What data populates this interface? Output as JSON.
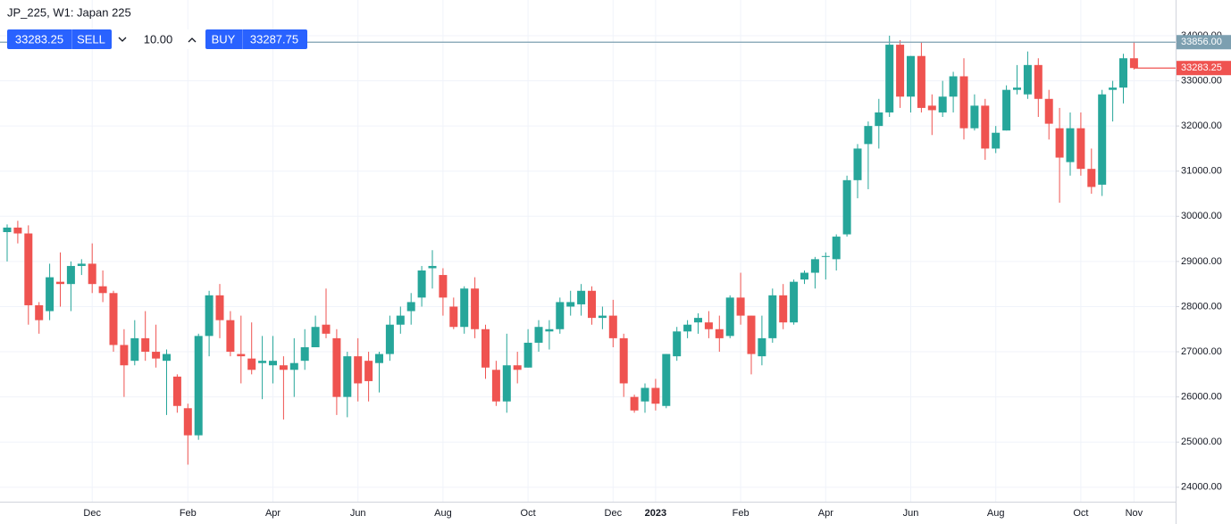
{
  "chart_data": {
    "type": "candlestick",
    "title": "JP_225, W1: Japan 225",
    "categories": [
      null,
      null,
      null,
      null,
      null,
      null,
      null,
      null,
      "Dec",
      null,
      null,
      null,
      null,
      null,
      null,
      null,
      null,
      "Feb",
      null,
      null,
      null,
      null,
      null,
      null,
      null,
      "Apr",
      null,
      null,
      null,
      null,
      null,
      null,
      null,
      "Jun",
      null,
      null,
      null,
      null,
      null,
      null,
      null,
      "Aug",
      null,
      null,
      null,
      null,
      null,
      null,
      null,
      "Oct",
      null,
      null,
      null,
      null,
      null,
      null,
      null,
      "Dec",
      null,
      null,
      null,
      "2023",
      null,
      null,
      null,
      null,
      null,
      null,
      null,
      "Feb",
      null,
      null,
      null,
      null,
      null,
      null,
      null,
      "Apr",
      null,
      null,
      null,
      null,
      null,
      null,
      null,
      "Jun",
      null,
      null,
      null,
      null,
      null,
      null,
      null,
      "Aug",
      null,
      null,
      null,
      null,
      null,
      null,
      null,
      "Oct",
      null,
      null,
      null,
      null,
      "Nov"
    ],
    "open": [
      29650,
      29750,
      29620,
      28030,
      27900,
      28550,
      28500,
      28900,
      28950,
      28450,
      28300,
      27150,
      26800,
      27300,
      27000,
      26800,
      26450,
      25750,
      25150,
      27350,
      28250,
      27700,
      26950,
      26850,
      26750,
      26700,
      26700,
      26600,
      26800,
      27100,
      27600,
      27300,
      26000,
      26900,
      26800,
      26750,
      26950,
      27600,
      27900,
      28200,
      28850,
      28700,
      28000,
      27550,
      28400,
      27500,
      26600,
      25900,
      26700,
      26650,
      27200,
      27450,
      27500,
      28000,
      28050,
      28350,
      27750,
      27800,
      27300,
      26000,
      25900,
      26200,
      25800,
      26900,
      27450,
      27650,
      27650,
      27500,
      27350,
      28200,
      27800,
      26900,
      27300,
      28250,
      27650,
      28600,
      28750,
      29100,
      29050,
      29600,
      30800,
      31600,
      32000,
      32300,
      33800,
      32650,
      33550,
      32450,
      32300,
      32650,
      33100,
      31950,
      32450,
      31500,
      31900,
      32800,
      32700,
      33350,
      32600,
      31950,
      31200,
      31950,
      31050,
      30700,
      32800,
      32850,
      33500
    ],
    "high": [
      29820,
      29900,
      29800,
      28100,
      28950,
      29200,
      29000,
      29050,
      29400,
      28800,
      28350,
      27500,
      27700,
      27900,
      27600,
      27050,
      26500,
      25850,
      27400,
      28350,
      28500,
      27900,
      27800,
      27650,
      27350,
      27350,
      26900,
      27300,
      27500,
      27800,
      28400,
      27500,
      27000,
      27300,
      27000,
      27000,
      27800,
      28000,
      28300,
      28900,
      29250,
      28850,
      28200,
      28450,
      28650,
      27600,
      26800,
      27400,
      27000,
      27500,
      27700,
      27700,
      28200,
      28350,
      28500,
      28450,
      28000,
      28150,
      27400,
      26050,
      26300,
      26400,
      26950,
      27550,
      27700,
      27850,
      27900,
      27800,
      28250,
      28750,
      27800,
      27800,
      28400,
      28500,
      28600,
      28800,
      29100,
      29200,
      29600,
      30900,
      31600,
      32100,
      32600,
      34000,
      33900,
      33550,
      33850,
      32700,
      33000,
      33200,
      33500,
      32700,
      32600,
      32000,
      32900,
      33350,
      33650,
      33500,
      32800,
      32400,
      32300,
      32300,
      31500,
      32800,
      33000,
      33600,
      33856
    ],
    "low": [
      29000,
      29400,
      27600,
      27400,
      27700,
      28000,
      27900,
      28700,
      28300,
      28100,
      27000,
      26000,
      26700,
      26800,
      26650,
      25600,
      25650,
      24500,
      25050,
      26900,
      27300,
      26900,
      26300,
      26500,
      25950,
      26300,
      25500,
      26000,
      26600,
      27100,
      27300,
      25600,
      25550,
      25900,
      25900,
      26100,
      26800,
      27400,
      27600,
      28000,
      28400,
      27800,
      27500,
      27400,
      27300,
      26400,
      25800,
      25650,
      26300,
      26650,
      27000,
      27050,
      27400,
      27800,
      27800,
      27600,
      27500,
      27100,
      26000,
      25650,
      25650,
      25700,
      25750,
      26800,
      27300,
      27400,
      27300,
      27000,
      27300,
      27600,
      26500,
      26700,
      27200,
      27500,
      27600,
      28500,
      28400,
      28600,
      28800,
      29550,
      30400,
      30600,
      31500,
      32200,
      32400,
      32300,
      32300,
      31800,
      32200,
      32300,
      31700,
      31900,
      31250,
      31400,
      31900,
      32700,
      32600,
      32200,
      31700,
      30300,
      30900,
      30900,
      30500,
      30450,
      32100,
      32500,
      33250
    ],
    "close": [
      29750,
      29620,
      28030,
      27700,
      28650,
      28500,
      28900,
      28950,
      28500,
      28300,
      27150,
      26700,
      27300,
      27000,
      26850,
      26950,
      25800,
      25150,
      27350,
      28250,
      27700,
      27000,
      26900,
      26600,
      26800,
      26800,
      26600,
      26750,
      27100,
      27550,
      27400,
      26000,
      26900,
      26300,
      26350,
      26950,
      27600,
      27800,
      28100,
      28800,
      28900,
      28200,
      27550,
      28400,
      27500,
      26650,
      25900,
      26700,
      26600,
      27200,
      27550,
      27500,
      28100,
      28100,
      28350,
      27750,
      27800,
      27300,
      26300,
      25700,
      26200,
      25850,
      26950,
      27450,
      27600,
      27750,
      27500,
      27300,
      28200,
      27800,
      26950,
      27300,
      28250,
      27650,
      28550,
      28750,
      29050,
      29120,
      29550,
      30800,
      31500,
      32000,
      32300,
      33800,
      32650,
      33550,
      32400,
      32350,
      32650,
      33100,
      31950,
      32450,
      31500,
      31850,
      32800,
      32850,
      33350,
      32600,
      32050,
      31300,
      31950,
      31050,
      30650,
      32700,
      32850,
      33500,
      33283.25
    ],
    "up_color": "#26a69a",
    "down_color": "#ef5350",
    "ylim": [
      23680,
      34790
    ],
    "yticks": [
      {
        "value": 24000,
        "label": "24000.00"
      },
      {
        "value": 25000,
        "label": "25000.00"
      },
      {
        "value": 26000,
        "label": "26000.00"
      },
      {
        "value": 27000,
        "label": "27000.00"
      },
      {
        "value": 28000,
        "label": "28000.00"
      },
      {
        "value": 29000,
        "label": "29000.00"
      },
      {
        "value": 30000,
        "label": "30000.00"
      },
      {
        "value": 31000,
        "label": "31000.00"
      },
      {
        "value": 32000,
        "label": "32000.00"
      },
      {
        "value": 33000,
        "label": "33000.00"
      },
      {
        "value": 34000,
        "label": "34000.00"
      }
    ],
    "grid": true,
    "price_lines": [
      {
        "value": 33856,
        "label": "33856.00",
        "color": "#7c9fb0"
      },
      {
        "value": 33283.25,
        "label": "33283.25",
        "color": "#ef5350"
      }
    ]
  },
  "trade_panel": {
    "sell_price": "33283.25",
    "sell": "SELL",
    "quantity": "10.00",
    "buy": "BUY",
    "buy_price": "33287.75"
  }
}
